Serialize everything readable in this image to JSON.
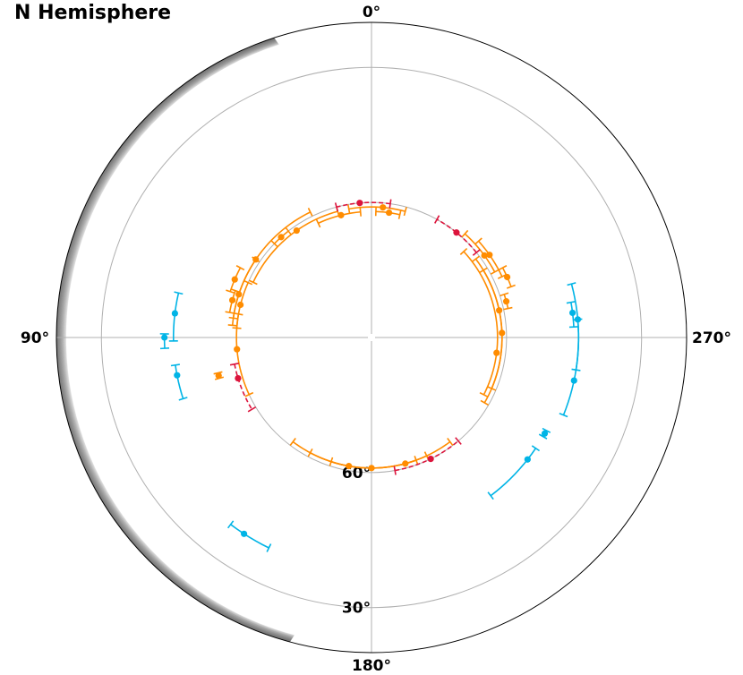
{
  "chart_data": {
    "type": "scatter",
    "projection": "polar",
    "title": "N Hemisphere",
    "theta_zero": "top",
    "theta_direction": "counterclockwise",
    "theta_tick_labels": [
      {
        "deg": 0,
        "label": "0°"
      },
      {
        "deg": 90,
        "label": "90°"
      },
      {
        "deg": 180,
        "label": "180°"
      },
      {
        "deg": 270,
        "label": "270°"
      }
    ],
    "r_axis": {
      "inner_value": 90,
      "outer_value": 20,
      "unit": "deg latitude"
    },
    "r_gridlines": [
      30,
      60
    ],
    "r_grid_extra": [
      40,
      50,
      70,
      80
    ],
    "r_tick_labels": [
      {
        "value": 60,
        "label": "60°"
      },
      {
        "value": 30,
        "label": "30°"
      }
    ],
    "grid": true,
    "colors": {
      "orange": "#ff8c00",
      "cyan": "#00b4e6",
      "crimson": "#dc143c",
      "grid": "#b0b0b0",
      "shading": "#555555"
    },
    "series": [
      {
        "color": "#ff8c00",
        "linestyle": "solid",
        "points": [
          {
            "lon": 355,
            "lat": 61,
            "lon_range": [
              345,
              10
            ]
          },
          {
            "lon": 352,
            "lat": 62,
            "lon_range": [
              347,
              358
            ]
          },
          {
            "lon": 14,
            "lat": 62,
            "lon_range": [
              5,
              25
            ]
          },
          {
            "lon": 35,
            "lat": 61,
            "lon_range": [
              15,
              65
            ]
          },
          {
            "lon": 42,
            "lat": 60,
            "lon_range": [
              38,
              46
            ]
          },
          {
            "lon": 56,
            "lat": 59,
            "lon_range": [
              26,
              85
            ]
          },
          {
            "lon": 67,
            "lat": 57,
            "lon_range": [
              62,
              72
            ]
          },
          {
            "lon": 72,
            "lat": 59,
            "lon_range": [
              56,
              82
            ]
          },
          {
            "lon": 75,
            "lat": 58,
            "lon_range": [
              71,
              80
            ]
          },
          {
            "lon": 76,
            "lat": 60,
            "lon_range": [
              66,
              86
            ]
          },
          {
            "lon": 95,
            "lat": 60,
            "lon_range": [
              80,
              115
            ]
          },
          {
            "lon": 104,
            "lat": 55,
            "lon_range": [
              103,
              105
            ]
          },
          {
            "lon": 170,
            "lat": 61,
            "lon_range": [
              143,
              217
            ]
          },
          {
            "lon": 180,
            "lat": 61,
            "lon_range": [
              152,
              200
            ]
          },
          {
            "lon": 195,
            "lat": 61,
            "lon_range": [
              162,
              205
            ]
          },
          {
            "lon": 263,
            "lat": 62,
            "lon_range": [
              243,
              313
            ]
          },
          {
            "lon": 272,
            "lat": 61,
            "lon_range": [
              240,
              301
            ]
          },
          {
            "lon": 285,
            "lat": 59,
            "lon_range": [
              282,
              288
            ]
          },
          {
            "lon": 282,
            "lat": 61,
            "lon_range": [
              247,
              307
            ]
          },
          {
            "lon": 294,
            "lat": 57,
            "lon_range": [
              290,
              298
            ]
          },
          {
            "lon": 305,
            "lat": 58,
            "lon_range": [
              295,
              312
            ]
          },
          {
            "lon": 306,
            "lat": 59,
            "lon_range": [
              298,
              318
            ]
          }
        ]
      },
      {
        "color": "#00b4e6",
        "linestyle": "solid",
        "points": [
          {
            "lon": 83,
            "lat": 46,
            "lon_range": [
              77,
              91
            ]
          },
          {
            "lon": 90,
            "lat": 44,
            "lon_range": [
              89,
              93
            ]
          },
          {
            "lon": 101,
            "lat": 46,
            "lon_range": [
              98,
              108
            ]
          },
          {
            "lon": 147,
            "lat": 38,
            "lon_range": [
              143,
              154
            ]
          },
          {
            "lon": 232,
            "lat": 46,
            "lon_range": [
              217,
              236
            ]
          },
          {
            "lon": 241,
            "lat": 46,
            "lon_range": [
              240,
              242
            ]
          },
          {
            "lon": 258,
            "lat": 44,
            "lon_range": [
              248,
              275
            ]
          },
          {
            "lon": 275,
            "lat": 44,
            "lon_range": [
              261,
              285
            ]
          },
          {
            "lon": 277,
            "lat": 45,
            "lon_range": [
              273,
              280
            ]
          }
        ]
      },
      {
        "color": "#dc143c",
        "linestyle": "dashed",
        "points": [
          {
            "lon": 5,
            "lat": 60,
            "lon_range": [
              352,
              15
            ]
          },
          {
            "lon": 107,
            "lat": 59,
            "lon_range": [
              101,
              121
            ]
          },
          {
            "lon": 206,
            "lat": 60,
            "lon_range": [
              190,
              220
            ]
          },
          {
            "lon": 321,
            "lat": 60,
            "lon_range": [
              309,
              331
            ]
          }
        ]
      }
    ]
  }
}
